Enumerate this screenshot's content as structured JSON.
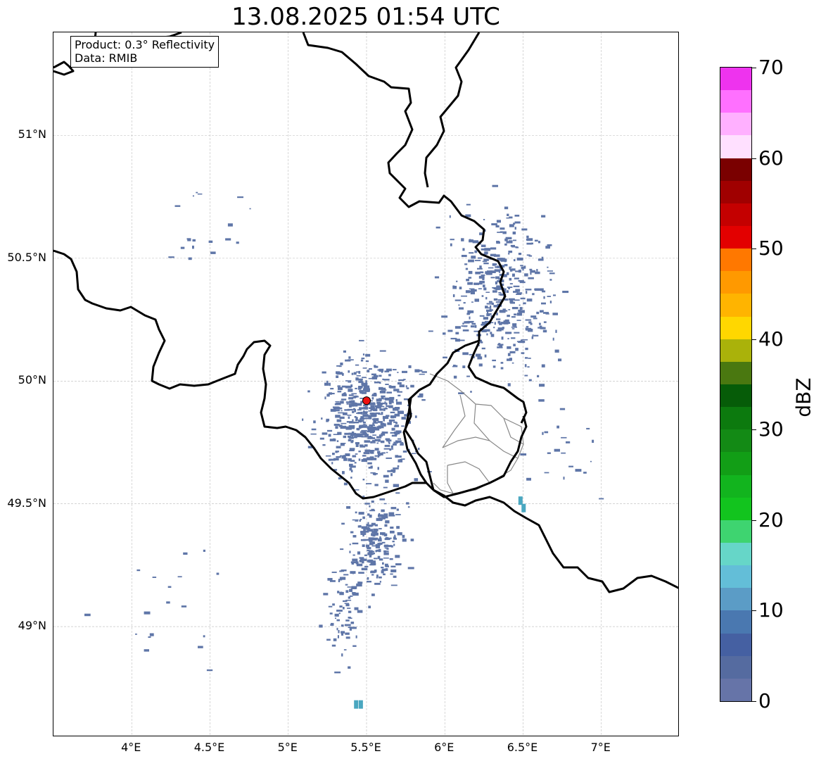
{
  "title": "13.08.2025 01:54 UTC",
  "info": {
    "product": "Product: 0.3° Reflectivity",
    "data": "Data: RMIB"
  },
  "axes": {
    "lat_ticks": [
      {
        "value": 51.0,
        "label": "51°N"
      },
      {
        "value": 50.5,
        "label": "50.5°N"
      },
      {
        "value": 50.0,
        "label": "50°N"
      },
      {
        "value": 49.5,
        "label": "49.5°N"
      },
      {
        "value": 49.0,
        "label": "49°N"
      }
    ],
    "lon_ticks": [
      {
        "value": 4.0,
        "label": "4°E"
      },
      {
        "value": 4.5,
        "label": "4.5°E"
      },
      {
        "value": 5.0,
        "label": "5°E"
      },
      {
        "value": 5.5,
        "label": "5.5°E"
      },
      {
        "value": 6.0,
        "label": "6°E"
      },
      {
        "value": 6.5,
        "label": "6.5°E"
      },
      {
        "value": 7.0,
        "label": "7°E"
      }
    ],
    "lon_range": [
      3.5,
      7.5
    ],
    "lat_range": [
      48.55,
      51.42
    ]
  },
  "radar_site": {
    "lon": 5.5,
    "lat": 49.92,
    "color": "#ee1111"
  },
  "colorbar": {
    "label": "dBZ",
    "min": 0,
    "max": 70,
    "ticks": [
      {
        "value": 0,
        "label": "0"
      },
      {
        "value": 10,
        "label": "10"
      },
      {
        "value": 20,
        "label": "20"
      },
      {
        "value": 30,
        "label": "30"
      },
      {
        "value": 40,
        "label": "40"
      },
      {
        "value": 50,
        "label": "50"
      },
      {
        "value": 60,
        "label": "60"
      },
      {
        "value": 70,
        "label": "70"
      }
    ],
    "colors": [
      "#6674a8",
      "#556ba0",
      "#4560a2",
      "#4a78b0",
      "#5b9cc6",
      "#63bed8",
      "#66d6c8",
      "#3ed470",
      "#12c41e",
      "#12b41e",
      "#129e16",
      "#138a15",
      "#0c7a0e",
      "#065c08",
      "#4a7810",
      "#aab20a",
      "#ffd700",
      "#ffb400",
      "#ff9900",
      "#ff7800",
      "#e30000",
      "#c40000",
      "#a00000",
      "#7a0000",
      "#ffe0ff",
      "#ffb0ff",
      "#ff70ff",
      "#ee33ee"
    ]
  },
  "echoes": {
    "color": "#5f76a8",
    "accent_color": "#4aa7c0",
    "clusters": [
      {
        "lon": 5.5,
        "lat": 49.85,
        "slon": 0.26,
        "slat": 0.22,
        "n": 520
      },
      {
        "lon": 6.35,
        "lat": 50.35,
        "slon": 0.3,
        "slat": 0.3,
        "n": 420
      },
      {
        "lon": 5.55,
        "lat": 49.35,
        "slon": 0.16,
        "slat": 0.18,
        "n": 200
      },
      {
        "lon": 5.35,
        "lat": 49.05,
        "slon": 0.12,
        "slat": 0.2,
        "n": 70
      },
      {
        "lon": 4.5,
        "lat": 50.6,
        "slon": 0.25,
        "slat": 0.15,
        "n": 18
      },
      {
        "lon": 4.2,
        "lat": 49.1,
        "slon": 0.35,
        "slat": 0.25,
        "n": 18
      },
      {
        "lon": 6.75,
        "lat": 49.7,
        "slon": 0.25,
        "slat": 0.15,
        "n": 20
      }
    ]
  }
}
